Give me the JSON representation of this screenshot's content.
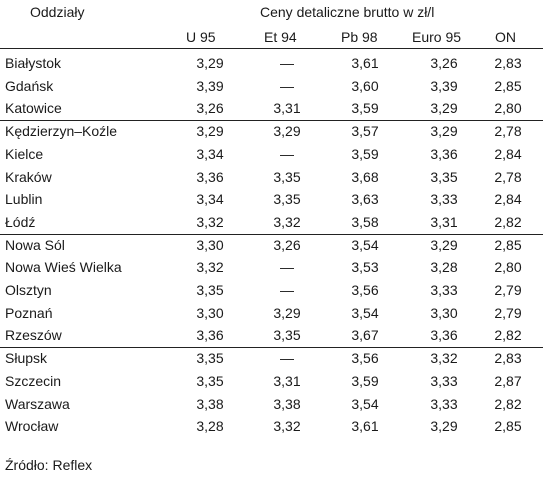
{
  "header": {
    "branch_label": "Oddziały",
    "price_label": "Ceny detaliczne brutto w zł/l",
    "columns": [
      "U 95",
      "Et 94",
      "Pb 98",
      "Euro 95",
      "ON"
    ]
  },
  "rows": [
    {
      "name": "Białystok",
      "values": [
        "3,29",
        "—",
        "3,61",
        "3,26",
        "2,83"
      ]
    },
    {
      "name": "Gdańsk",
      "values": [
        "3,39",
        "—",
        "3,60",
        "3,39",
        "2,85"
      ]
    },
    {
      "name": "Katowice",
      "values": [
        "3,26",
        "3,31",
        "3,59",
        "3,29",
        "2,80"
      ]
    },
    {
      "name": "Kędzierzyn–Koźle",
      "values": [
        "3,29",
        "3,29",
        "3,57",
        "3,29",
        "2,78"
      ]
    },
    {
      "name": "Kielce",
      "values": [
        "3,34",
        "—",
        "3,59",
        "3,36",
        "2,84"
      ]
    },
    {
      "name": "Kraków",
      "values": [
        "3,36",
        "3,35",
        "3,68",
        "3,35",
        "2,78"
      ]
    },
    {
      "name": "Lublin",
      "values": [
        "3,34",
        "3,35",
        "3,63",
        "3,33",
        "2,84"
      ]
    },
    {
      "name": "Łódź",
      "values": [
        "3,32",
        "3,32",
        "3,58",
        "3,31",
        "2,82"
      ]
    },
    {
      "name": "Nowa Sól",
      "values": [
        "3,30",
        "3,26",
        "3,54",
        "3,29",
        "2,85"
      ]
    },
    {
      "name": "Nowa Wieś Wielka",
      "values": [
        "3,32",
        "—",
        "3,53",
        "3,28",
        "2,80"
      ]
    },
    {
      "name": "Olsztyn",
      "values": [
        "3,35",
        "—",
        "3,56",
        "3,33",
        "2,79"
      ]
    },
    {
      "name": "Poznań",
      "values": [
        "3,30",
        "3,29",
        "3,54",
        "3,30",
        "2,79"
      ]
    },
    {
      "name": "Rzeszów",
      "values": [
        "3,36",
        "3,35",
        "3,67",
        "3,36",
        "2,82"
      ]
    },
    {
      "name": "Słupsk",
      "values": [
        "3,35",
        "—",
        "3,56",
        "3,32",
        "2,83"
      ]
    },
    {
      "name": "Szczecin",
      "values": [
        "3,35",
        "3,31",
        "3,59",
        "3,33",
        "2,87"
      ]
    },
    {
      "name": "Warszawa",
      "values": [
        "3,38",
        "3,38",
        "3,54",
        "3,33",
        "2,82"
      ]
    },
    {
      "name": "Wrocław",
      "values": [
        "3,28",
        "3,32",
        "3,61",
        "3,29",
        "2,85"
      ]
    }
  ],
  "source": "Źródło: Reflex"
}
